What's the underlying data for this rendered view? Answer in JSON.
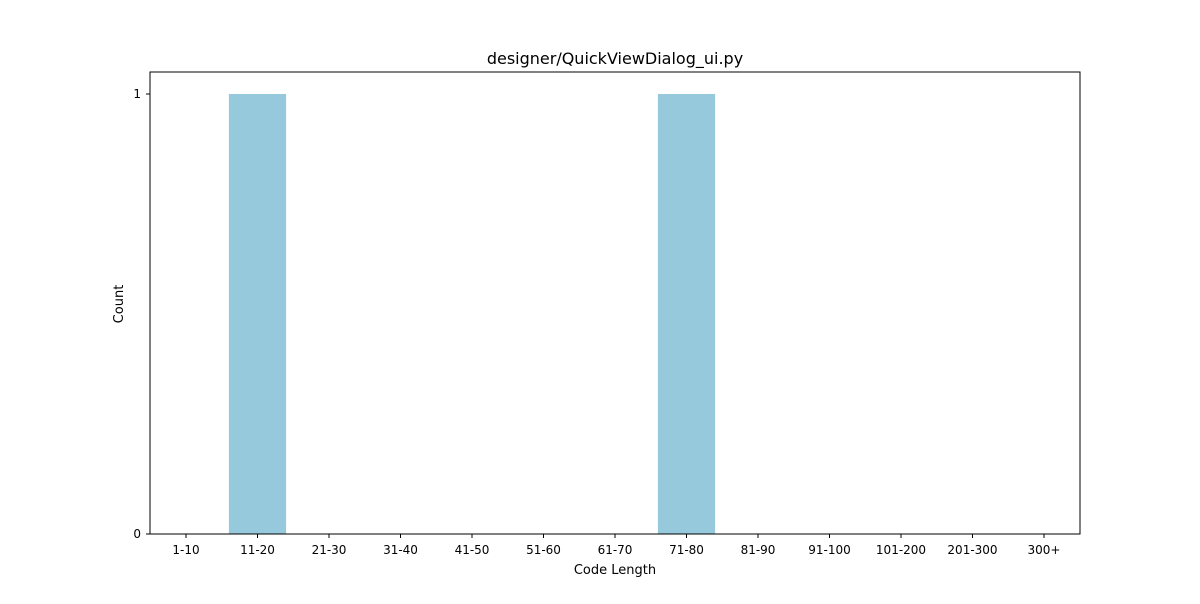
{
  "chart_data": {
    "type": "bar",
    "title": "designer/QuickViewDialog_ui.py",
    "xlabel": "Code Length",
    "ylabel": "Count",
    "categories": [
      "1-10",
      "11-20",
      "21-30",
      "31-40",
      "41-50",
      "51-60",
      "61-70",
      "71-80",
      "81-90",
      "91-100",
      "101-200",
      "201-300",
      "300+"
    ],
    "values": [
      0,
      1,
      0,
      0,
      0,
      0,
      0,
      1,
      0,
      0,
      0,
      0,
      0
    ],
    "ylim": [
      0,
      1
    ],
    "yticks": [
      0,
      1
    ],
    "grid": false,
    "bar_color": "#96c9dc",
    "axis_color": "#000000"
  }
}
